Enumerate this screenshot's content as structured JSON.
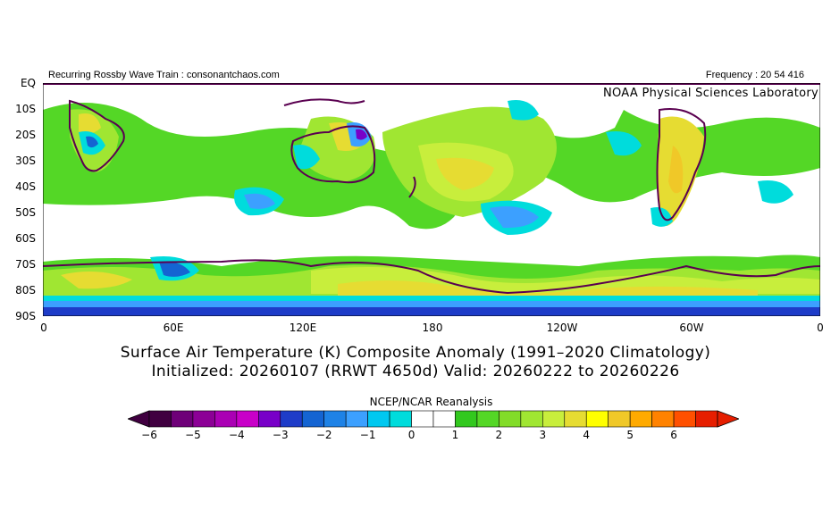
{
  "header": {
    "left_text": "Recurring Rossby Wave Train : consonantchaos.com",
    "right_text": "Frequency : 20 54 416"
  },
  "map": {
    "credit": "NOAA Physical Sciences Laboratory",
    "lat_labels": [
      "EQ",
      "10S",
      "20S",
      "30S",
      "40S",
      "50S",
      "60S",
      "70S",
      "80S",
      "90S"
    ],
    "lon_labels": [
      "0",
      "60E",
      "120E",
      "180",
      "120W",
      "60W",
      "0"
    ],
    "colors": {
      "white_band": "#ffffff",
      "green": "#54d726",
      "lightgreen": "#a0e632",
      "yellowgreen": "#c8ee3c",
      "yellow": "#e6dc32",
      "gold": "#f0c828",
      "cyan": "#00dcdc",
      "lightblue": "#3ca0ff",
      "blue": "#1464d2",
      "deepblue": "#1e3cc8",
      "purple": "#6e0078",
      "coastline": "#5a0050"
    }
  },
  "titles": {
    "line1": "Surface Air Temperature (K) Composite Anomaly (1991–2020 Climatology)",
    "line2": "Initialized: 20260107 (RRWT 4650d) Valid: 20260222 to 20260226"
  },
  "colorbar": {
    "source_label": "NCEP/NCAR Reanalysis",
    "ticks": [
      "−6",
      "−5",
      "−4",
      "−3",
      "−2",
      "−1",
      "0",
      "1",
      "2",
      "3",
      "4",
      "5",
      "6"
    ],
    "colors": [
      "#400040",
      "#6e0078",
      "#8c0096",
      "#aa00b4",
      "#c800c8",
      "#7800c8",
      "#1e3cc8",
      "#1464d2",
      "#1e82e6",
      "#3ca0ff",
      "#00c8f0",
      "#00dcdc",
      "#ffffff",
      "#ffffff",
      "#32c81e",
      "#54d726",
      "#82dc28",
      "#a0e632",
      "#c8ee3c",
      "#e6dc32",
      "#ffff00",
      "#f0c828",
      "#ffaa00",
      "#ff8200",
      "#ff5000",
      "#e61e00"
    ]
  }
}
